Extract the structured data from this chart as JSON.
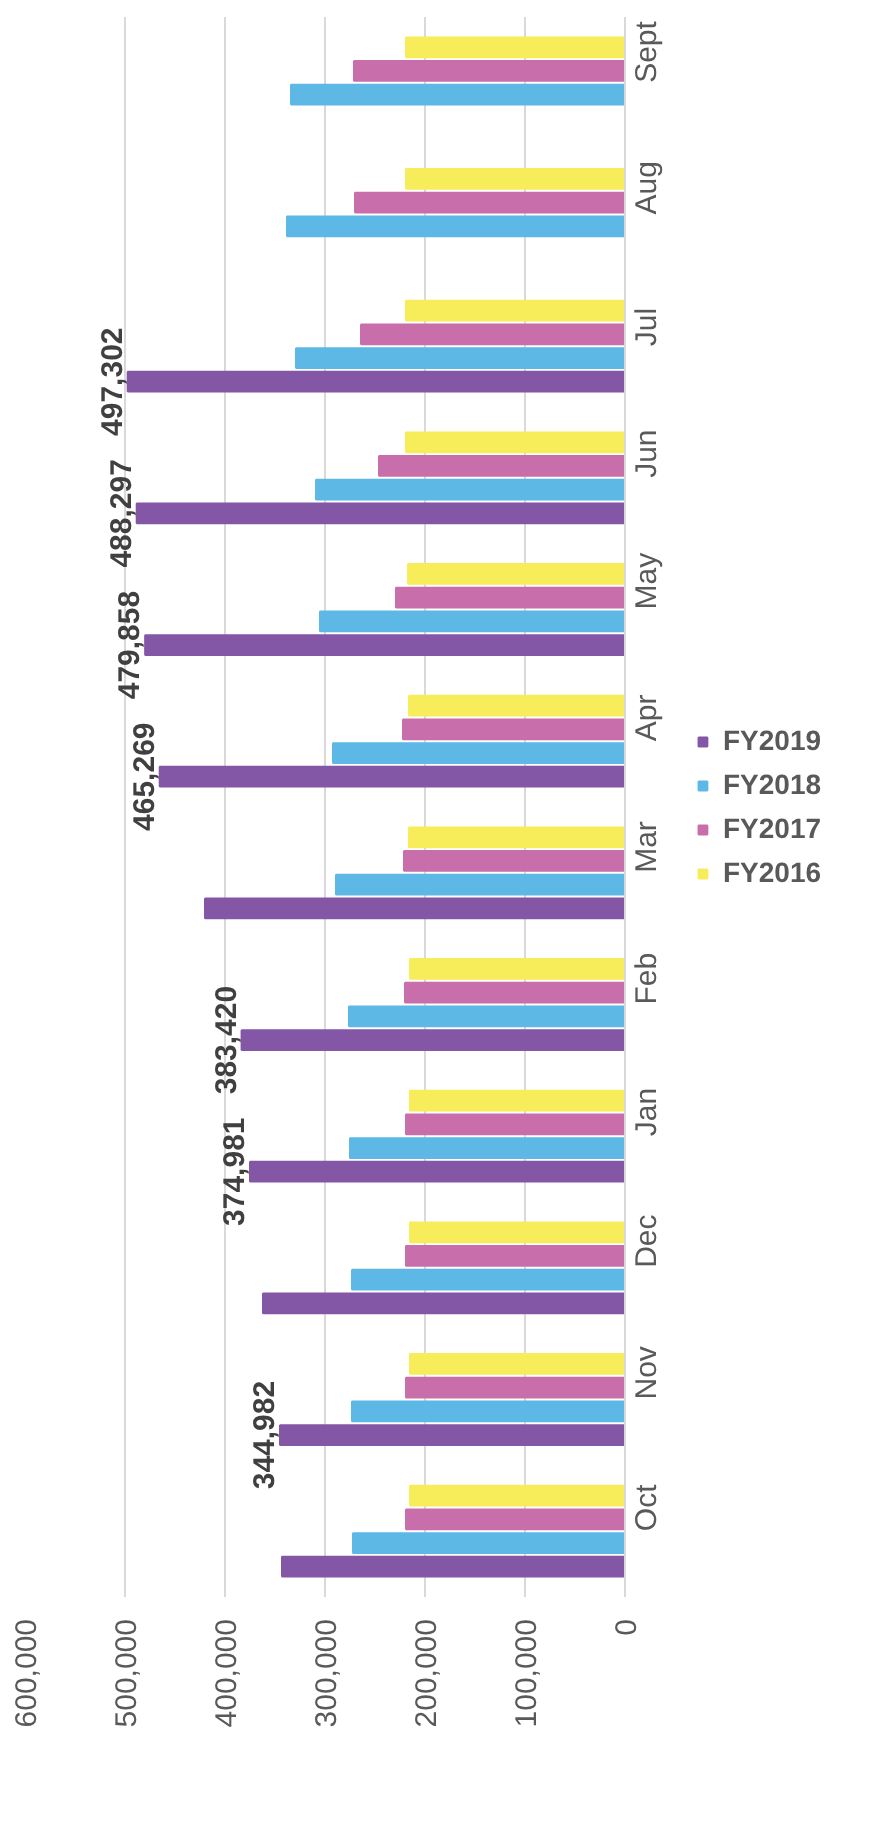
{
  "chart_data": {
    "type": "bar",
    "orientation": "horizontal",
    "categories": [
      "Sept",
      "Aug",
      "Jul",
      "Jun",
      "May",
      "Apr",
      "Mar",
      "Feb",
      "Jan",
      "Dec",
      "Nov",
      "Oct"
    ],
    "series": [
      {
        "name": "FY2019",
        "color": "#8457a6",
        "values": [
          null,
          null,
          497302,
          488297,
          479858,
          465269,
          420000,
          383420,
          374981,
          362000,
          344982,
          343000
        ],
        "value_labels": [
          null,
          null,
          "497,302",
          "488,297",
          "479,858",
          "465,269",
          null,
          "383,420",
          "374,981",
          null,
          "344,982",
          null
        ]
      },
      {
        "name": "FY2018",
        "color": "#5db8e6",
        "values": [
          334000,
          338000,
          329000,
          309000,
          305000,
          292000,
          289000,
          276000,
          275000,
          273000,
          273000,
          272000
        ]
      },
      {
        "name": "FY2017",
        "color": "#c86fab",
        "values": [
          271000,
          270000,
          264000,
          246000,
          229000,
          222000,
          221000,
          220000,
          219000,
          219000,
          219000,
          219000
        ]
      },
      {
        "name": "FY2016",
        "color": "#f7ec5a",
        "values": [
          219000,
          219000,
          219000,
          219000,
          217000,
          216000,
          216000,
          215000,
          215000,
          215000,
          215000,
          215000
        ]
      }
    ],
    "xlim": [
      600000,
      0
    ],
    "xticks": [
      {
        "value": 0,
        "label": "0"
      },
      {
        "value": 100000,
        "label": "100,000"
      },
      {
        "value": 200000,
        "label": "200,000"
      },
      {
        "value": 300000,
        "label": "300,000"
      },
      {
        "value": 400000,
        "label": "400,000"
      },
      {
        "value": 500000,
        "label": "500,000"
      },
      {
        "value": 600000,
        "label": "600,000"
      }
    ],
    "grid": "x",
    "legend": "right"
  }
}
